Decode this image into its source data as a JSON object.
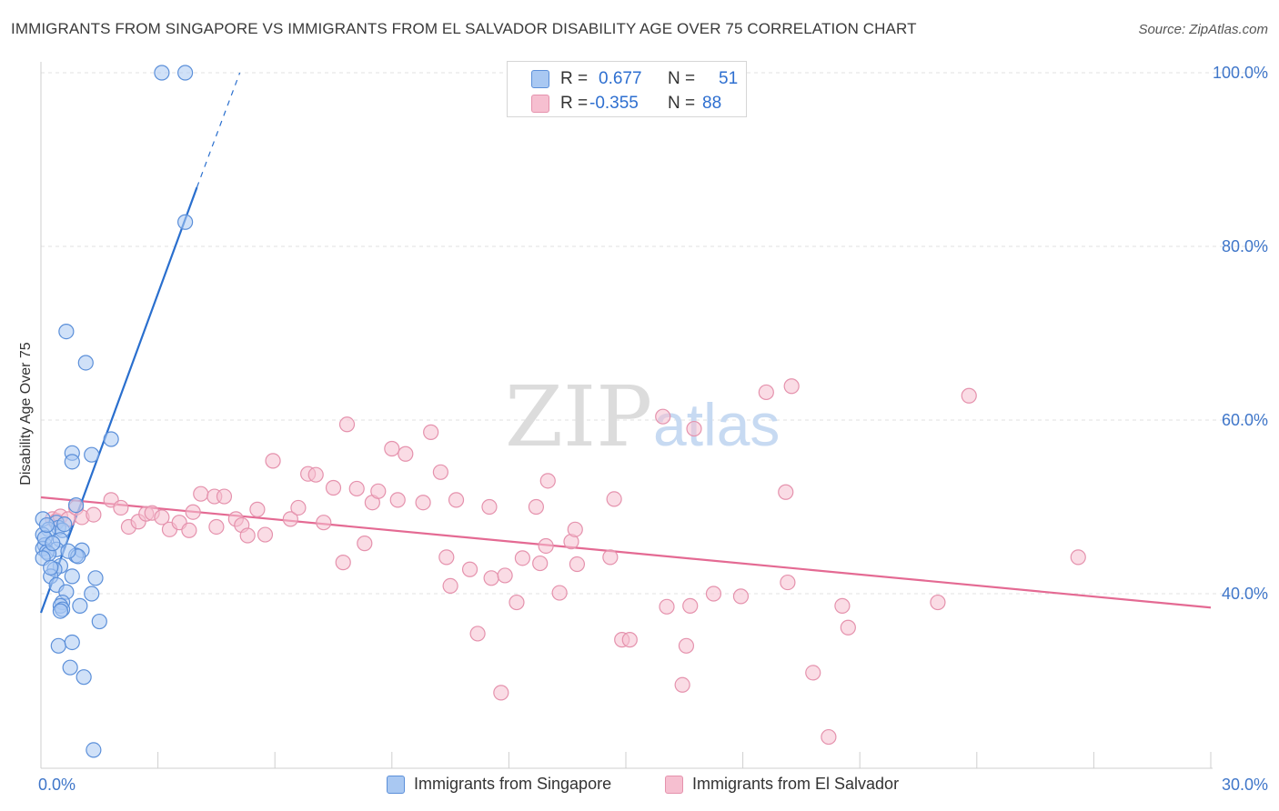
{
  "title": "IMMIGRANTS FROM SINGAPORE VS IMMIGRANTS FROM EL SALVADOR DISABILITY AGE OVER 75 CORRELATION CHART",
  "source": "Source: ZipAtlas.com",
  "watermark": {
    "zip": "ZIP",
    "atlas": "atlas"
  },
  "colors": {
    "singapore_fill": "#a9c8f2",
    "singapore_stroke": "#5b8fd9",
    "singapore_line": "#2a6fce",
    "elsalvador_fill": "#f6bfd0",
    "elsalvador_stroke": "#e592ad",
    "elsalvador_line": "#e46a93",
    "axis_label": "#3f76c9",
    "grid": "#e2e2e2"
  },
  "stats_legend": {
    "rows": [
      {
        "r_label": "R =",
        "r_value": "0.677",
        "n_label": "N =",
        "n_value": "51"
      },
      {
        "r_label": "R =",
        "r_value": "-0.355",
        "n_label": "N =",
        "n_value": "88"
      }
    ]
  },
  "bottom_legend": {
    "items": [
      "Immigrants from Singapore",
      "Immigrants from El Salvador"
    ]
  },
  "chart_data": {
    "type": "scatter",
    "title": "IMMIGRANTS FROM SINGAPORE VS IMMIGRANTS FROM EL SALVADOR DISABILITY AGE OVER 75 CORRELATION CHART",
    "xlabel": "",
    "ylabel": "Disability Age Over 75",
    "xlim": [
      0,
      30
    ],
    "ylim": [
      20,
      104
    ],
    "x_tick_labels": [
      {
        "value": 0,
        "label": "0.0%"
      },
      {
        "value": 30,
        "label": "30.0%"
      }
    ],
    "y_tick_labels": [
      {
        "value": 40,
        "label": "40.0%"
      },
      {
        "value": 60,
        "label": "60.0%"
      },
      {
        "value": 80,
        "label": "80.0%"
      },
      {
        "value": 100,
        "label": "100.0%"
      }
    ],
    "x_minor_ticks": [
      0,
      3,
      6,
      9,
      12,
      15,
      18,
      21,
      24,
      27,
      30
    ],
    "grid": true,
    "legend_position": "top-center",
    "series": [
      {
        "name": "Immigrants from Singapore",
        "points": [
          [
            3.1,
            100.0
          ],
          [
            3.7,
            100.0
          ],
          [
            3.7,
            82.8
          ],
          [
            0.65,
            70.2
          ],
          [
            1.15,
            66.6
          ],
          [
            1.8,
            57.8
          ],
          [
            0.8,
            56.2
          ],
          [
            1.3,
            56.0
          ],
          [
            0.8,
            55.2
          ],
          [
            0.9,
            50.2
          ],
          [
            0.05,
            48.6
          ],
          [
            0.4,
            48.2
          ],
          [
            0.45,
            47.6
          ],
          [
            0.2,
            47.4
          ],
          [
            0.55,
            47.3
          ],
          [
            0.05,
            46.8
          ],
          [
            0.5,
            46.2
          ],
          [
            0.1,
            45.6
          ],
          [
            0.05,
            45.2
          ],
          [
            0.4,
            45.1
          ],
          [
            1.05,
            45.0
          ],
          [
            0.15,
            44.8
          ],
          [
            0.2,
            44.6
          ],
          [
            0.9,
            44.4
          ],
          [
            0.95,
            44.3
          ],
          [
            0.05,
            44.1
          ],
          [
            0.5,
            43.2
          ],
          [
            0.35,
            42.8
          ],
          [
            0.8,
            42.0
          ],
          [
            0.25,
            42.0
          ],
          [
            1.4,
            41.8
          ],
          [
            0.4,
            41.0
          ],
          [
            0.65,
            40.2
          ],
          [
            1.3,
            40.0
          ],
          [
            0.55,
            39.0
          ],
          [
            0.5,
            38.6
          ],
          [
            1.0,
            38.6
          ],
          [
            0.55,
            38.2
          ],
          [
            1.5,
            36.8
          ],
          [
            0.45,
            34.0
          ],
          [
            0.8,
            34.4
          ],
          [
            0.75,
            31.5
          ],
          [
            1.1,
            30.4
          ],
          [
            1.35,
            22.0
          ],
          [
            0.5,
            38.0
          ],
          [
            0.1,
            46.4
          ],
          [
            0.3,
            45.8
          ],
          [
            0.6,
            48.0
          ],
          [
            0.25,
            43.0
          ],
          [
            0.7,
            44.9
          ],
          [
            0.15,
            47.9
          ]
        ],
        "trend": {
          "x": [
            0.0,
            4.0
          ],
          "y": [
            37.8,
            86.8
          ]
        },
        "trend_dashed": {
          "x": [
            4.0,
            5.1
          ],
          "y": [
            86.8,
            100.0
          ]
        }
      },
      {
        "name": "Immigrants from El Salvador",
        "points": [
          [
            0.3,
            48.6
          ],
          [
            0.4,
            48.4
          ],
          [
            0.5,
            48.9
          ],
          [
            0.7,
            48.6
          ],
          [
            0.9,
            49.9
          ],
          [
            1.05,
            48.8
          ],
          [
            1.35,
            49.1
          ],
          [
            1.8,
            50.8
          ],
          [
            2.05,
            49.9
          ],
          [
            2.25,
            47.7
          ],
          [
            2.5,
            48.3
          ],
          [
            2.7,
            49.2
          ],
          [
            2.85,
            49.3
          ],
          [
            3.1,
            48.8
          ],
          [
            3.3,
            47.4
          ],
          [
            3.55,
            48.2
          ],
          [
            3.8,
            47.3
          ],
          [
            3.9,
            49.4
          ],
          [
            4.1,
            51.5
          ],
          [
            4.5,
            47.7
          ],
          [
            4.45,
            51.2
          ],
          [
            4.7,
            51.2
          ],
          [
            5.0,
            48.6
          ],
          [
            5.15,
            47.9
          ],
          [
            5.3,
            46.7
          ],
          [
            5.55,
            49.7
          ],
          [
            5.75,
            46.8
          ],
          [
            5.95,
            55.3
          ],
          [
            6.4,
            48.6
          ],
          [
            6.6,
            49.9
          ],
          [
            6.85,
            53.8
          ],
          [
            7.05,
            53.7
          ],
          [
            7.25,
            48.2
          ],
          [
            7.5,
            52.2
          ],
          [
            7.75,
            43.6
          ],
          [
            7.85,
            59.5
          ],
          [
            8.1,
            52.1
          ],
          [
            8.3,
            45.8
          ],
          [
            8.5,
            50.5
          ],
          [
            8.65,
            51.8
          ],
          [
            9.0,
            56.7
          ],
          [
            9.15,
            50.8
          ],
          [
            9.35,
            56.1
          ],
          [
            9.8,
            50.5
          ],
          [
            10.0,
            58.6
          ],
          [
            10.25,
            54.0
          ],
          [
            10.4,
            44.2
          ],
          [
            10.5,
            40.9
          ],
          [
            10.65,
            50.8
          ],
          [
            11.0,
            42.8
          ],
          [
            11.2,
            35.4
          ],
          [
            11.5,
            50.0
          ],
          [
            11.55,
            41.8
          ],
          [
            11.8,
            28.6
          ],
          [
            11.9,
            42.1
          ],
          [
            12.2,
            39.0
          ],
          [
            12.35,
            44.1
          ],
          [
            12.7,
            50.0
          ],
          [
            12.8,
            43.5
          ],
          [
            13.0,
            53.0
          ],
          [
            12.95,
            45.5
          ],
          [
            13.3,
            40.1
          ],
          [
            13.6,
            46.0
          ],
          [
            13.7,
            47.4
          ],
          [
            13.75,
            43.4
          ],
          [
            14.6,
            44.2
          ],
          [
            14.7,
            50.9
          ],
          [
            14.9,
            34.7
          ],
          [
            15.1,
            34.7
          ],
          [
            15.95,
            60.4
          ],
          [
            16.05,
            38.5
          ],
          [
            16.45,
            29.5
          ],
          [
            16.55,
            34.0
          ],
          [
            16.65,
            38.6
          ],
          [
            16.75,
            59.0
          ],
          [
            17.25,
            40.0
          ],
          [
            17.95,
            39.7
          ],
          [
            18.6,
            63.2
          ],
          [
            19.1,
            51.7
          ],
          [
            19.15,
            41.3
          ],
          [
            19.8,
            30.9
          ],
          [
            20.2,
            23.5
          ],
          [
            20.55,
            38.6
          ],
          [
            20.7,
            36.1
          ],
          [
            23.0,
            39.0
          ],
          [
            23.8,
            62.8
          ],
          [
            26.6,
            44.2
          ],
          [
            19.25,
            63.9
          ]
        ],
        "trend": {
          "x": [
            0.0,
            30.0
          ],
          "y": [
            51.1,
            38.4
          ]
        }
      }
    ]
  }
}
